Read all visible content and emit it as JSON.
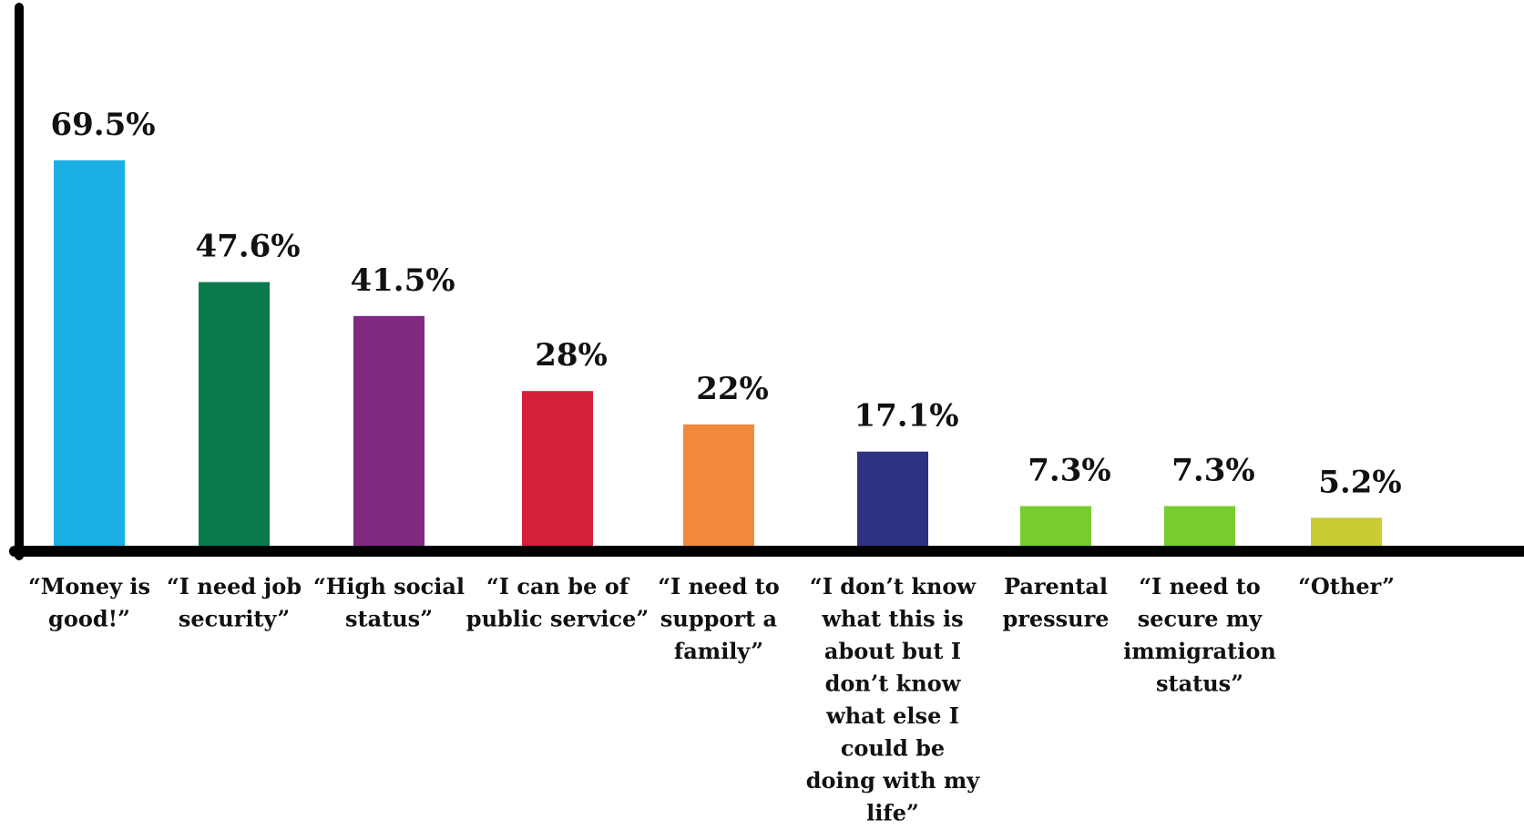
{
  "chart_data": {
    "type": "bar",
    "categories": [
      [
        "“Money is",
        "good!”"
      ],
      [
        "“I need job",
        "security”"
      ],
      [
        "“High social",
        "status”"
      ],
      [
        "“I can be of",
        "public service”"
      ],
      [
        "“I need to",
        "support a",
        "family”"
      ],
      [
        "“I don’t know",
        "what this is",
        "about but I",
        "don’t know",
        "what else I",
        "could be",
        "doing with my",
        "life”"
      ],
      [
        "Parental",
        "pressure"
      ],
      [
        "“I need to",
        "secure my",
        "immigration",
        "status”"
      ],
      [
        "“Other”"
      ]
    ],
    "values": [
      69.5,
      47.6,
      41.5,
      28,
      22,
      17.1,
      7.3,
      7.3,
      5.2
    ],
    "value_labels": [
      "69.5%",
      "47.6%",
      "41.5%",
      "28%",
      "22%",
      "17.1%",
      "7.3%",
      "7.3%",
      "5.2%"
    ],
    "colors": [
      "#1ab0e3",
      "#0b7a4d",
      "#7f2a80",
      "#d4203b",
      "#f2883a",
      "#2e3280",
      "#77cc2e",
      "#77cc2e",
      "#c9cc33"
    ],
    "ylim": [
      0,
      75
    ],
    "title": "",
    "xlabel": "",
    "ylabel": "",
    "grid": false,
    "legend": "none"
  }
}
